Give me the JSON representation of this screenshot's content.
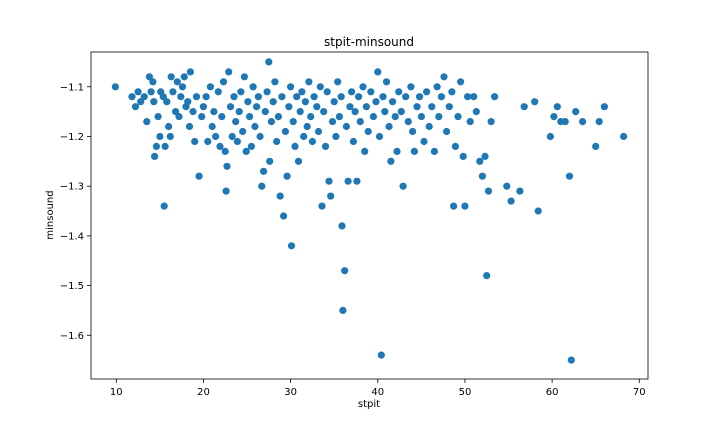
{
  "chart_data": {
    "type": "scatter",
    "title": "stpit-minsound",
    "xlabel": "stpit",
    "ylabel": "minsound",
    "xlim": [
      7.1,
      71.0
    ],
    "ylim": [
      -1.688,
      -1.03
    ],
    "xticks": [
      10,
      20,
      30,
      40,
      50,
      60,
      70
    ],
    "yticks": [
      -1.6,
      -1.5,
      -1.4,
      -1.3,
      -1.2,
      -1.1
    ],
    "xtick_labels": [
      "10",
      "20",
      "30",
      "40",
      "50",
      "60",
      "70"
    ],
    "ytick_labels": [
      "−1.6",
      "−1.5",
      "−1.4",
      "−1.3",
      "−1.2",
      "−1.1"
    ],
    "grid": false,
    "marker_color": "#1f77b4",
    "points": [
      [
        9.9,
        -1.1
      ],
      [
        11.8,
        -1.12
      ],
      [
        12.2,
        -1.14
      ],
      [
        12.5,
        -1.11
      ],
      [
        12.8,
        -1.13
      ],
      [
        13.2,
        -1.12
      ],
      [
        13.5,
        -1.17
      ],
      [
        13.8,
        -1.08
      ],
      [
        14.0,
        -1.11
      ],
      [
        14.2,
        -1.09
      ],
      [
        14.3,
        -1.13
      ],
      [
        14.4,
        -1.24
      ],
      [
        14.6,
        -1.22
      ],
      [
        14.8,
        -1.16
      ],
      [
        15.0,
        -1.2
      ],
      [
        15.1,
        -1.11
      ],
      [
        15.4,
        -1.12
      ],
      [
        15.5,
        -1.34
      ],
      [
        15.6,
        -1.22
      ],
      [
        15.8,
        -1.13
      ],
      [
        16.0,
        -1.18
      ],
      [
        16.2,
        -1.2
      ],
      [
        16.3,
        -1.08
      ],
      [
        16.5,
        -1.11
      ],
      [
        16.8,
        -1.15
      ],
      [
        17.0,
        -1.09
      ],
      [
        17.2,
        -1.16
      ],
      [
        17.4,
        -1.12
      ],
      [
        17.6,
        -1.1
      ],
      [
        17.8,
        -1.08
      ],
      [
        18.0,
        -1.14
      ],
      [
        18.2,
        -1.13
      ],
      [
        18.4,
        -1.18
      ],
      [
        18.5,
        -1.07
      ],
      [
        18.8,
        -1.15
      ],
      [
        19.0,
        -1.21
      ],
      [
        19.2,
        -1.12
      ],
      [
        19.5,
        -1.28
      ],
      [
        19.8,
        -1.16
      ],
      [
        20.0,
        -1.14
      ],
      [
        20.3,
        -1.12
      ],
      [
        20.5,
        -1.21
      ],
      [
        20.8,
        -1.1
      ],
      [
        21.0,
        -1.18
      ],
      [
        21.2,
        -1.15
      ],
      [
        21.4,
        -1.2
      ],
      [
        21.7,
        -1.11
      ],
      [
        21.9,
        -1.22
      ],
      [
        22.1,
        -1.16
      ],
      [
        22.3,
        -1.09
      ],
      [
        22.5,
        -1.23
      ],
      [
        22.6,
        -1.31
      ],
      [
        22.7,
        -1.26
      ],
      [
        22.9,
        -1.07
      ],
      [
        23.1,
        -1.14
      ],
      [
        23.3,
        -1.2
      ],
      [
        23.5,
        -1.12
      ],
      [
        23.7,
        -1.17
      ],
      [
        23.9,
        -1.21
      ],
      [
        24.1,
        -1.15
      ],
      [
        24.3,
        -1.11
      ],
      [
        24.5,
        -1.19
      ],
      [
        24.7,
        -1.08
      ],
      [
        24.9,
        -1.23
      ],
      [
        25.1,
        -1.13
      ],
      [
        25.3,
        -1.16
      ],
      [
        25.5,
        -1.22
      ],
      [
        25.7,
        -1.1
      ],
      [
        25.9,
        -1.18
      ],
      [
        26.1,
        -1.14
      ],
      [
        26.3,
        -1.12
      ],
      [
        26.5,
        -1.2
      ],
      [
        26.7,
        -1.3
      ],
      [
        26.9,
        -1.27
      ],
      [
        27.1,
        -1.15
      ],
      [
        27.3,
        -1.11
      ],
      [
        27.5,
        -1.05
      ],
      [
        27.6,
        -1.25
      ],
      [
        27.8,
        -1.17
      ],
      [
        28.0,
        -1.13
      ],
      [
        28.2,
        -1.09
      ],
      [
        28.4,
        -1.21
      ],
      [
        28.6,
        -1.16
      ],
      [
        28.8,
        -1.32
      ],
      [
        29.0,
        -1.12
      ],
      [
        29.2,
        -1.36
      ],
      [
        29.4,
        -1.19
      ],
      [
        29.6,
        -1.28
      ],
      [
        29.8,
        -1.14
      ],
      [
        30.0,
        -1.1
      ],
      [
        30.1,
        -1.42
      ],
      [
        30.3,
        -1.17
      ],
      [
        30.5,
        -1.22
      ],
      [
        30.7,
        -1.12
      ],
      [
        30.9,
        -1.25
      ],
      [
        31.1,
        -1.15
      ],
      [
        31.3,
        -1.11
      ],
      [
        31.5,
        -1.2
      ],
      [
        31.7,
        -1.13
      ],
      [
        31.9,
        -1.18
      ],
      [
        32.1,
        -1.09
      ],
      [
        32.3,
        -1.16
      ],
      [
        32.5,
        -1.21
      ],
      [
        32.7,
        -1.12
      ],
      [
        33.0,
        -1.14
      ],
      [
        33.2,
        -1.19
      ],
      [
        33.4,
        -1.1
      ],
      [
        33.6,
        -1.34
      ],
      [
        33.8,
        -1.15
      ],
      [
        34.0,
        -1.22
      ],
      [
        34.2,
        -1.11
      ],
      [
        34.4,
        -1.29
      ],
      [
        34.6,
        -1.32
      ],
      [
        34.8,
        -1.17
      ],
      [
        35.0,
        -1.13
      ],
      [
        35.2,
        -1.2
      ],
      [
        35.4,
        -1.09
      ],
      [
        35.6,
        -1.16
      ],
      [
        35.8,
        -1.12
      ],
      [
        35.9,
        -1.38
      ],
      [
        36.0,
        -1.55
      ],
      [
        36.2,
        -1.47
      ],
      [
        36.4,
        -1.18
      ],
      [
        36.6,
        -1.29
      ],
      [
        36.8,
        -1.14
      ],
      [
        37.0,
        -1.11
      ],
      [
        37.2,
        -1.21
      ],
      [
        37.4,
        -1.15
      ],
      [
        37.6,
        -1.29
      ],
      [
        37.8,
        -1.12
      ],
      [
        38.0,
        -1.17
      ],
      [
        38.3,
        -1.1
      ],
      [
        38.5,
        -1.23
      ],
      [
        38.7,
        -1.14
      ],
      [
        38.9,
        -1.19
      ],
      [
        39.2,
        -1.11
      ],
      [
        39.5,
        -1.16
      ],
      [
        39.8,
        -1.13
      ],
      [
        40.0,
        -1.07
      ],
      [
        40.2,
        -1.2
      ],
      [
        40.4,
        -1.64
      ],
      [
        40.6,
        -1.12
      ],
      [
        40.8,
        -1.15
      ],
      [
        41.0,
        -1.09
      ],
      [
        41.3,
        -1.18
      ],
      [
        41.5,
        -1.25
      ],
      [
        41.7,
        -1.13
      ],
      [
        42.0,
        -1.16
      ],
      [
        42.2,
        -1.23
      ],
      [
        42.4,
        -1.11
      ],
      [
        42.7,
        -1.15
      ],
      [
        42.9,
        -1.3
      ],
      [
        43.2,
        -1.12
      ],
      [
        43.5,
        -1.17
      ],
      [
        43.8,
        -1.1
      ],
      [
        44.0,
        -1.19
      ],
      [
        44.2,
        -1.23
      ],
      [
        44.5,
        -1.14
      ],
      [
        44.8,
        -1.12
      ],
      [
        45.0,
        -1.16
      ],
      [
        45.3,
        -1.21
      ],
      [
        45.6,
        -1.11
      ],
      [
        45.9,
        -1.18
      ],
      [
        46.2,
        -1.14
      ],
      [
        46.5,
        -1.23
      ],
      [
        46.8,
        -1.1
      ],
      [
        47.0,
        -1.16
      ],
      [
        47.3,
        -1.12
      ],
      [
        47.6,
        -1.08
      ],
      [
        47.9,
        -1.19
      ],
      [
        48.2,
        -1.14
      ],
      [
        48.5,
        -1.11
      ],
      [
        48.7,
        -1.34
      ],
      [
        48.9,
        -1.22
      ],
      [
        49.2,
        -1.16
      ],
      [
        49.5,
        -1.09
      ],
      [
        49.8,
        -1.24
      ],
      [
        50.0,
        -1.34
      ],
      [
        50.3,
        -1.12
      ],
      [
        50.6,
        -1.17
      ],
      [
        51.0,
        -1.12
      ],
      [
        51.3,
        -1.15
      ],
      [
        51.7,
        -1.25
      ],
      [
        52.0,
        -1.28
      ],
      [
        52.3,
        -1.24
      ],
      [
        52.5,
        -1.48
      ],
      [
        52.7,
        -1.31
      ],
      [
        53.0,
        -1.17
      ],
      [
        53.4,
        -1.12
      ],
      [
        54.8,
        -1.3
      ],
      [
        55.3,
        -1.33
      ],
      [
        56.3,
        -1.31
      ],
      [
        56.8,
        -1.14
      ],
      [
        58.0,
        -1.13
      ],
      [
        58.4,
        -1.35
      ],
      [
        59.8,
        -1.2
      ],
      [
        60.2,
        -1.16
      ],
      [
        60.6,
        -1.14
      ],
      [
        61.0,
        -1.17
      ],
      [
        61.5,
        -1.17
      ],
      [
        62.0,
        -1.28
      ],
      [
        62.2,
        -1.65
      ],
      [
        62.7,
        -1.15
      ],
      [
        63.5,
        -1.17
      ],
      [
        65.0,
        -1.22
      ],
      [
        65.4,
        -1.17
      ],
      [
        66.0,
        -1.14
      ],
      [
        68.2,
        -1.2
      ]
    ]
  }
}
